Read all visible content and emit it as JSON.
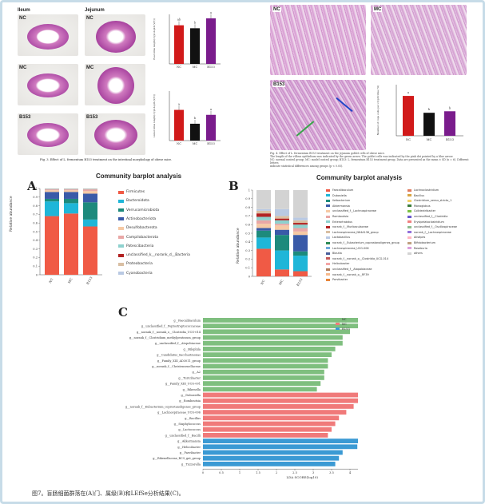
{
  "top_left": {
    "col_headers": [
      "Ileum",
      "Jejunum"
    ],
    "row_labels": [
      "NC",
      "MC",
      "B153"
    ],
    "bar_groups": [
      "NC",
      "MC",
      "B153"
    ],
    "ylabel_top": "Real villus length(crypt depth (V/C))",
    "ylabel_bottom": "Liebel villus length(crypt depth (V/C))",
    "sig_top": [
      "ab",
      "b",
      "a"
    ],
    "sig_bottom": [
      "a",
      "b",
      "a"
    ],
    "caption": "Fig. 3. Effect of L. fermentum B153 treatment on the intestinal morphology of obese mice."
  },
  "top_right": {
    "row_labels": [
      "NC",
      "MC",
      "B153"
    ],
    "bar_groups": [
      "NC",
      "MC",
      "B153"
    ],
    "ylabel": "Number of cups cells per crypt/villus (%)",
    "sig": [
      "a",
      "b",
      "b"
    ],
    "caption_lines": [
      "Fig. 4. Effect of L. fermentum B153 treatment on the jejunum goblet cells of obese mice.",
      "The length of the villous epithelium was indicated by the green arrow. The goblet cells was indicated by the pink dot pointed by a blue arrow.",
      "NC: normal control group; MC: model control group; B153: L. fermentum B153 treatment group. Data are presented as the mean ± SD (n = 6). Different letters",
      "indicate statistical differences among groups (p < 0.05)."
    ]
  },
  "panel_A": {
    "letter": "A",
    "title": "Community barplot analysis",
    "ylabel": "Relative abundance",
    "categories": [
      "NC",
      "MC",
      "B153"
    ],
    "legend": [
      {
        "name": "Firmicutes",
        "color": "#f05a45"
      },
      {
        "name": "Bacteroidota",
        "color": "#1fb6d8"
      },
      {
        "name": "Verrucomicrobiota",
        "color": "#1d8a7c"
      },
      {
        "name": "Actinobacteriota",
        "color": "#3a5aa8"
      },
      {
        "name": "Desulfobacterota",
        "color": "#f6c9a4"
      },
      {
        "name": "Campilobacterota",
        "color": "#e9a7a6"
      },
      {
        "name": "Patescibacteria",
        "color": "#8ed1ce"
      },
      {
        "name": "unclassified_k__norank_d__Bacteria",
        "color": "#b22222"
      },
      {
        "name": "Proteobacteria",
        "color": "#d9bfa3"
      },
      {
        "name": "Cyanobacteria",
        "color": "#b9c9e3"
      }
    ],
    "yticks": [
      "0",
      "0.1",
      "0.2",
      "0.3",
      "0.4",
      "0.5",
      "0.6",
      "0.7",
      "0.8",
      "0.9",
      "1"
    ]
  },
  "panel_B": {
    "letter": "B",
    "title": "Community barplot analysis",
    "ylabel": "Relative abundance",
    "categories": [
      "NC",
      "MC",
      "B153"
    ],
    "legend_left": [
      {
        "name": "Faecalibaculum",
        "color": "#f05a45"
      },
      {
        "name": "Dubosiella",
        "color": "#1fb6d8"
      },
      {
        "name": "Ileibacterium",
        "color": "#1d8a7c"
      },
      {
        "name": "Akkermansia",
        "color": "#3a5aa8"
      },
      {
        "name": "unclassified_f__Lachnospiraceae",
        "color": "#f6c9a4"
      },
      {
        "name": "Romboutsia",
        "color": "#e9a7a6"
      },
      {
        "name": "Enterorhabdus",
        "color": "#8ed1ce"
      },
      {
        "name": "norank_f__Muribaculaceae",
        "color": "#b22222"
      },
      {
        "name": "Lachnospiraceae_NK4A136_group",
        "color": "#d9bfa3"
      },
      {
        "name": "Lactobacillus",
        "color": "#b9c9e3"
      },
      {
        "name": "norank_f__Eubacterium_coprostanoligenes_group",
        "color": "#2e8b57"
      },
      {
        "name": "Lachnospiraceae_UCG-006",
        "color": "#6fa8dc"
      },
      {
        "name": "Blautia",
        "color": "#4a5f9c"
      },
      {
        "name": "norank_f__norank_o__Clostridia_UCG-014",
        "color": "#c55a5a"
      },
      {
        "name": "Helicobacter",
        "color": "#f4a6a6"
      },
      {
        "name": "unclassified_f__Atopobiaceae",
        "color": "#b07c5b"
      },
      {
        "name": "norank_f__norank_o__RF39",
        "color": "#f7b98c"
      },
      {
        "name": "Parvibacter",
        "color": "#e8853a"
      }
    ],
    "legend_right": [
      {
        "name": "Lachnoclostridium",
        "color": "#e07b5f"
      },
      {
        "name": "Bacillus",
        "color": "#d9a441"
      },
      {
        "name": "Clostridium_sensu_stricto_1",
        "color": "#f2d16b"
      },
      {
        "name": "Monoglobus",
        "color": "#3b7d3a"
      },
      {
        "name": "Colidextribacter",
        "color": "#7ac142"
      },
      {
        "name": "unclassified_f__Clostridia",
        "color": "#6a5acd"
      },
      {
        "name": "Erysipelatoclostridium",
        "color": "#f08080"
      },
      {
        "name": "unclassified_f__Oscillospiraceae",
        "color": "#8fbc8f"
      },
      {
        "name": "norank_f__Lachnospiraceae",
        "color": "#9370db"
      },
      {
        "name": "Alistipes",
        "color": "#ffb6c1"
      },
      {
        "name": "Bifidobacterium",
        "color": "#c0a080"
      },
      {
        "name": "Roseburia",
        "color": "#dda0dd"
      },
      {
        "name": "others",
        "color": "#d3d3d3"
      }
    ],
    "yticks": [
      "0",
      "0.1",
      "0.2",
      "0.3",
      "0.4",
      "0.5",
      "0.6",
      "0.7",
      "0.8",
      "0.9",
      "1"
    ]
  },
  "panel_C": {
    "letter": "C",
    "xlabel": "LDA SCORE(log10)",
    "xticks": [
      "0",
      "0.5",
      "1",
      "1.5",
      "2",
      "2.5",
      "3",
      "3.5",
      "4",
      "4.5",
      "5",
      "5.5"
    ],
    "legend": [
      {
        "name": "NC",
        "color": "#7fbf7f"
      },
      {
        "name": "MC",
        "color": "#f07a7a"
      },
      {
        "name": "B153",
        "color": "#3b9ad4"
      }
    ]
  },
  "chart_data": [
    {
      "type": "bar",
      "title": "Community barplot analysis (A)",
      "xlabel": "",
      "ylabel": "Relative abundance",
      "ylim": [
        0,
        1
      ],
      "categories": [
        "NC",
        "MC",
        "B153"
      ],
      "series": [
        {
          "name": "Firmicutes",
          "values": [
            0.68,
            0.71,
            0.56
          ]
        },
        {
          "name": "Bacteroidota",
          "values": [
            0.17,
            0.12,
            0.08
          ]
        },
        {
          "name": "Verrucomicrobiota",
          "values": [
            0.03,
            0.05,
            0.2
          ]
        },
        {
          "name": "Actinobacteriota",
          "values": [
            0.08,
            0.08,
            0.1
          ]
        },
        {
          "name": "Desulfobacterota",
          "values": [
            0.02,
            0.02,
            0.03
          ]
        },
        {
          "name": "Campilobacterota",
          "values": [
            0.01,
            0.01,
            0.02
          ]
        },
        {
          "name": "Patescibacteria",
          "values": [
            0.005,
            0.005,
            0.005
          ]
        },
        {
          "name": "unclassified_k__norank_d__Bacteria",
          "values": [
            0.002,
            0.002,
            0.002
          ]
        },
        {
          "name": "Proteobacteria",
          "values": [
            0.002,
            0.002,
            0.002
          ]
        },
        {
          "name": "Cyanobacteria",
          "values": [
            0.001,
            0.001,
            0.001
          ]
        }
      ]
    },
    {
      "type": "bar",
      "title": "Community barplot analysis (B)",
      "xlabel": "",
      "ylabel": "Relative abundance",
      "ylim": [
        0,
        1
      ],
      "categories": [
        "NC",
        "MC",
        "B153"
      ],
      "series": [
        {
          "name": "Faecalibaculum",
          "values": [
            0.32,
            0.08,
            0.06
          ]
        },
        {
          "name": "Dubosiella",
          "values": [
            0.13,
            0.22,
            0.18
          ]
        },
        {
          "name": "Ileibacterium",
          "values": [
            0.08,
            0.18,
            0.05
          ]
        },
        {
          "name": "Akkermansia",
          "values": [
            0.03,
            0.06,
            0.19
          ]
        },
        {
          "name": "unclassified_f__Lachnospiraceae",
          "values": [
            0.05,
            0.05,
            0.04
          ]
        },
        {
          "name": "Romboutsia",
          "values": [
            0.04,
            0.02,
            0.04
          ]
        },
        {
          "name": "Enterorhabdus",
          "values": [
            0.04,
            0.04,
            0.04
          ]
        },
        {
          "name": "norank_f__Muribaculaceae",
          "values": [
            0.04,
            0.02,
            0.02
          ]
        },
        {
          "name": "Lachnospiraceae_NK4A136_group",
          "values": [
            0.03,
            0.03,
            0.03
          ]
        },
        {
          "name": "Lactobacillus",
          "values": [
            0.02,
            0.08,
            0.03
          ]
        },
        {
          "name": "others",
          "values": [
            0.22,
            0.22,
            0.32
          ]
        }
      ]
    },
    {
      "type": "bar",
      "title": "",
      "xlabel": "LDA SCORE(log10)",
      "ylabel": "",
      "orientation": "horizontal",
      "xlim": [
        0,
        5.5
      ],
      "categories": [
        "g__Faecalibaculum",
        "g__unclassified_f__Peptostreptococcaceae",
        "g__norank_f__norank_o__Clostridia_UCG-014",
        "g__norank_f__Clostridium_methylpentosum_group",
        "g__unclassified_f__Atopobiaceae",
        "g__Bilophila",
        "g__Candidatus_Saccharimonas",
        "g__Family_XIII_AD3011_group",
        "g__norank_f__Christensenellaceae",
        "g__A2",
        "g__Turicibacter",
        "g__Family_XIII_UCG-001",
        "g__Rikenella",
        "g__Dubosiella",
        "g__Romboutsia",
        "g__norank_f__Eubacterium_coprostanoligenes_group",
        "g__Lachnospiraceae_UCG-006",
        "g__Bacillus",
        "g__Staphylococcus",
        "g__Lactococcus",
        "g__unclassified_f__Bacilli",
        "g__Akkermansia",
        "g__Helicobacter",
        "g__Parvibacter",
        "g__Rikenellaceae_RC9_gut_group",
        "g__Tuzzerella"
      ],
      "series": [
        {
          "name": "NC",
          "values": [
            5.0,
            4.3,
            4.0,
            3.8,
            3.8,
            3.6,
            3.5,
            3.4,
            3.4,
            3.3,
            3.3,
            3.2,
            3.1,
            null,
            null,
            null,
            null,
            null,
            null,
            null,
            null,
            null,
            null,
            null,
            null,
            null
          ]
        },
        {
          "name": "MC",
          "values": [
            null,
            null,
            null,
            null,
            null,
            null,
            null,
            null,
            null,
            null,
            null,
            null,
            null,
            4.8,
            4.5,
            4.1,
            3.9,
            3.7,
            3.6,
            3.5,
            3.4,
            null,
            null,
            null,
            null,
            null
          ]
        },
        {
          "name": "B153",
          "values": [
            null,
            null,
            null,
            null,
            null,
            null,
            null,
            null,
            null,
            null,
            null,
            null,
            null,
            null,
            null,
            null,
            null,
            null,
            null,
            null,
            null,
            4.7,
            4.2,
            3.8,
            3.7,
            3.6
          ]
        }
      ]
    }
  ],
  "figure_caption": "图7。盲肠细菌群落在(A)门、属级(B)和LEfSe分析结果(C)。"
}
